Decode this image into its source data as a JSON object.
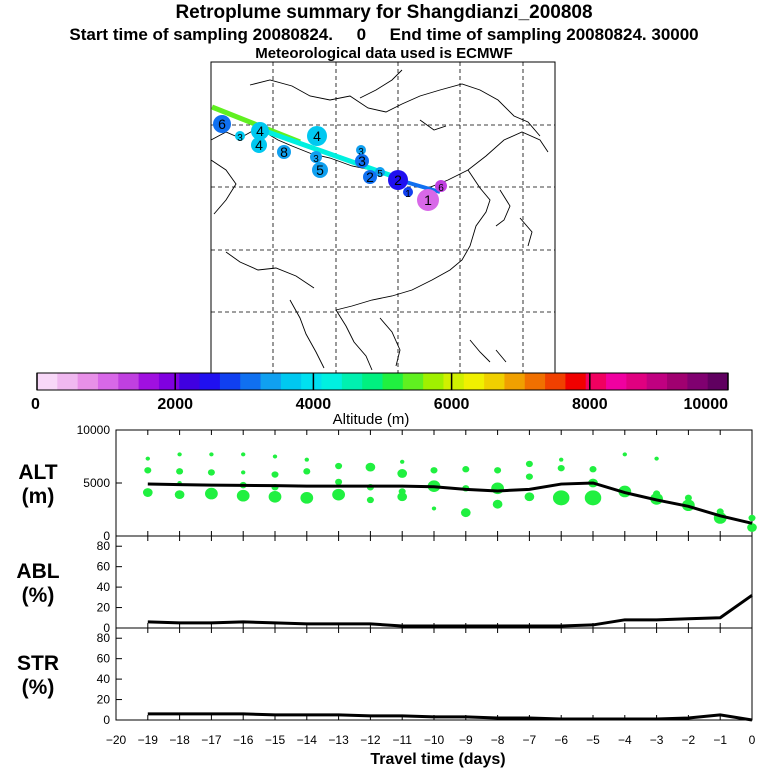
{
  "header": {
    "title": "Retroplume summary for Shangdianzi_200808",
    "subtitle": "Start time of sampling 20080824.     0     End time of sampling 20080824. 30000",
    "met_line": "Meteorological data used is ECMWF"
  },
  "map": {
    "description_labels": [
      "6",
      "3",
      "4",
      "4",
      "4",
      "5",
      "3",
      "3",
      "5",
      "2",
      "1",
      "1",
      "3",
      "6"
    ],
    "plume_points": [
      {
        "day": 6,
        "alt": 3200,
        "label": "6"
      },
      {
        "day": 3,
        "alt": 3600,
        "label": "3"
      },
      {
        "day": 4,
        "alt": 3700,
        "label": "4"
      },
      {
        "day": 4,
        "alt": 3800,
        "label": "4"
      },
      {
        "day": 8,
        "alt": 3500,
        "label": "8"
      },
      {
        "day": 4,
        "alt": 3800,
        "label": "4"
      },
      {
        "day": 3,
        "alt": 3300,
        "label": "3"
      },
      {
        "day": 5,
        "alt": 3400,
        "label": "5"
      },
      {
        "day": 3,
        "alt": 3300,
        "label": "3"
      },
      {
        "day": 3,
        "alt": 3200,
        "label": "3"
      },
      {
        "day": 5,
        "alt": 3300,
        "label": "5"
      },
      {
        "day": 2,
        "alt": 3100,
        "label": "2"
      },
      {
        "day": 2,
        "alt": 2600,
        "label": "2"
      },
      {
        "day": 1,
        "alt": 2800,
        "label": "1"
      },
      {
        "day": 1,
        "alt": 1000,
        "label": "1"
      },
      {
        "day": 6,
        "alt": 1200,
        "label": "6"
      }
    ]
  },
  "colorbar": {
    "ticks": [
      "0",
      "2000",
      "4000",
      "6000",
      "8000",
      "10000"
    ],
    "label": "Altitude (m)",
    "colors": [
      "#f8d8f8",
      "#f0b8f0",
      "#e890e8",
      "#d868e8",
      "#c040e0",
      "#a010e0",
      "#8000e0",
      "#4000e0",
      "#2010f0",
      "#1040f0",
      "#1070f0",
      "#10a0f0",
      "#00c8f0",
      "#00e0f0",
      "#00f0e0",
      "#00f0b0",
      "#00f080",
      "#20f040",
      "#60f020",
      "#a0f000",
      "#d0f000",
      "#f0f000",
      "#f0d000",
      "#f0a000",
      "#f07000",
      "#f04000",
      "#f00000",
      "#f00060",
      "#f000a0",
      "#e00080",
      "#c00080",
      "#a00070",
      "#800070",
      "#600060"
    ]
  },
  "chart_data": [
    {
      "type": "line",
      "panel": "ALT",
      "ylabel": "ALT\n(m)",
      "ylabel_lines": [
        "ALT",
        "(m)"
      ],
      "ylim": [
        0,
        10000
      ],
      "yticks": [
        "10000",
        "5000",
        "0"
      ],
      "x": [
        -19,
        -18,
        -17,
        -16,
        -15,
        -14,
        -13,
        -12,
        -11,
        -10,
        -9,
        -8,
        -7,
        -6,
        -5,
        -4,
        -3,
        -2,
        -1,
        0
      ],
      "series": [
        {
          "name": "mean altitude",
          "values": [
            4900,
            4850,
            4800,
            4780,
            4750,
            4700,
            4700,
            4700,
            4700,
            4650,
            4400,
            4250,
            4400,
            4900,
            5000,
            4100,
            3400,
            2800,
            1900,
            1200
          ]
        }
      ],
      "scatter": [
        {
          "x": -19,
          "y": 7300,
          "s": 1
        },
        {
          "x": -19,
          "y": 6200,
          "s": 2
        },
        {
          "x": -19,
          "y": 4100,
          "s": 3
        },
        {
          "x": -18,
          "y": 7700,
          "s": 1
        },
        {
          "x": -18,
          "y": 6100,
          "s": 2
        },
        {
          "x": -18,
          "y": 5000,
          "s": 1
        },
        {
          "x": -18,
          "y": 3900,
          "s": 3
        },
        {
          "x": -17,
          "y": 7700,
          "s": 1
        },
        {
          "x": -17,
          "y": 6000,
          "s": 2
        },
        {
          "x": -17,
          "y": 4000,
          "s": 4
        },
        {
          "x": -16,
          "y": 7700,
          "s": 1
        },
        {
          "x": -16,
          "y": 6000,
          "s": 1
        },
        {
          "x": -16,
          "y": 4800,
          "s": 2
        },
        {
          "x": -16,
          "y": 3800,
          "s": 4
        },
        {
          "x": -15,
          "y": 7500,
          "s": 1
        },
        {
          "x": -15,
          "y": 5800,
          "s": 2
        },
        {
          "x": -15,
          "y": 4600,
          "s": 2
        },
        {
          "x": -15,
          "y": 3700,
          "s": 4
        },
        {
          "x": -14,
          "y": 7200,
          "s": 1
        },
        {
          "x": -14,
          "y": 6100,
          "s": 2
        },
        {
          "x": -14,
          "y": 3600,
          "s": 4
        },
        {
          "x": -13,
          "y": 6600,
          "s": 2
        },
        {
          "x": -13,
          "y": 5100,
          "s": 2
        },
        {
          "x": -13,
          "y": 3900,
          "s": 4
        },
        {
          "x": -12,
          "y": 6500,
          "s": 3
        },
        {
          "x": -12,
          "y": 4600,
          "s": 2
        },
        {
          "x": -12,
          "y": 3400,
          "s": 2
        },
        {
          "x": -11,
          "y": 7000,
          "s": 1
        },
        {
          "x": -11,
          "y": 5900,
          "s": 3
        },
        {
          "x": -11,
          "y": 4200,
          "s": 2
        },
        {
          "x": -11,
          "y": 3700,
          "s": 3
        },
        {
          "x": -10,
          "y": 6200,
          "s": 2
        },
        {
          "x": -10,
          "y": 4700,
          "s": 4
        },
        {
          "x": -10,
          "y": 2600,
          "s": 1
        },
        {
          "x": -9,
          "y": 6300,
          "s": 2
        },
        {
          "x": -9,
          "y": 4500,
          "s": 2
        },
        {
          "x": -9,
          "y": 2200,
          "s": 3
        },
        {
          "x": -8,
          "y": 6200,
          "s": 2
        },
        {
          "x": -8,
          "y": 4500,
          "s": 4
        },
        {
          "x": -8,
          "y": 3000,
          "s": 3
        },
        {
          "x": -7,
          "y": 6800,
          "s": 2
        },
        {
          "x": -7,
          "y": 5600,
          "s": 2
        },
        {
          "x": -7,
          "y": 3700,
          "s": 3
        },
        {
          "x": -6,
          "y": 7200,
          "s": 1
        },
        {
          "x": -6,
          "y": 6400,
          "s": 2
        },
        {
          "x": -6,
          "y": 3600,
          "s": 5
        },
        {
          "x": -5,
          "y": 6300,
          "s": 2
        },
        {
          "x": -5,
          "y": 5000,
          "s": 3
        },
        {
          "x": -5,
          "y": 3600,
          "s": 5
        },
        {
          "x": -4,
          "y": 7700,
          "s": 1
        },
        {
          "x": -4,
          "y": 4200,
          "s": 4
        },
        {
          "x": -3,
          "y": 7300,
          "s": 1
        },
        {
          "x": -3,
          "y": 4000,
          "s": 2
        },
        {
          "x": -3,
          "y": 3500,
          "s": 4
        },
        {
          "x": -2,
          "y": 3600,
          "s": 2
        },
        {
          "x": -2,
          "y": 2900,
          "s": 4
        },
        {
          "x": -1,
          "y": 2300,
          "s": 2
        },
        {
          "x": -1,
          "y": 1700,
          "s": 4
        },
        {
          "x": 0,
          "y": 1700,
          "s": 2
        },
        {
          "x": 0,
          "y": 800,
          "s": 3
        }
      ]
    },
    {
      "type": "line",
      "panel": "ABL",
      "ylabel": "ABL\n(%)",
      "ylabel_lines": [
        "ABL",
        "(%)"
      ],
      "ylim": [
        0,
        90
      ],
      "yticks": [
        "80",
        "60",
        "40",
        "20",
        "0"
      ],
      "x": [
        -19,
        -18,
        -17,
        -16,
        -15,
        -14,
        -13,
        -12,
        -11,
        -10,
        -9,
        -8,
        -7,
        -6,
        -5,
        -4,
        -3,
        -2,
        -1,
        0
      ],
      "series": [
        {
          "name": "ABL fraction",
          "values": [
            6,
            5,
            5,
            6,
            5,
            4,
            4,
            4,
            2,
            2,
            2,
            2,
            2,
            2,
            3,
            8,
            8,
            9,
            10,
            32
          ]
        }
      ]
    },
    {
      "type": "line",
      "panel": "STR",
      "ylabel": "STR\n(%)",
      "ylabel_lines": [
        "STR",
        "(%)"
      ],
      "ylim": [
        0,
        90
      ],
      "yticks": [
        "80",
        "60",
        "40",
        "20",
        "0"
      ],
      "xlabel": "Travel time (days)",
      "xticks": [
        "−20",
        "−19",
        "−18",
        "−17",
        "−16",
        "−15",
        "−14",
        "−13",
        "−12",
        "−11",
        "−10",
        "−9",
        "−8",
        "−7",
        "−6",
        "−5",
        "−4",
        "−3",
        "−2",
        "−1",
        "0"
      ],
      "x": [
        -19,
        -18,
        -17,
        -16,
        -15,
        -14,
        -13,
        -12,
        -11,
        -10,
        -9,
        -8,
        -7,
        -6,
        -5,
        -4,
        -3,
        -2,
        -1,
        0
      ],
      "series": [
        {
          "name": "stratospheric fraction",
          "values": [
            6,
            6,
            6,
            6,
            5,
            5,
            5,
            4,
            4,
            3,
            3,
            2,
            2,
            1,
            1,
            1,
            1,
            2,
            5,
            0
          ]
        }
      ]
    }
  ]
}
